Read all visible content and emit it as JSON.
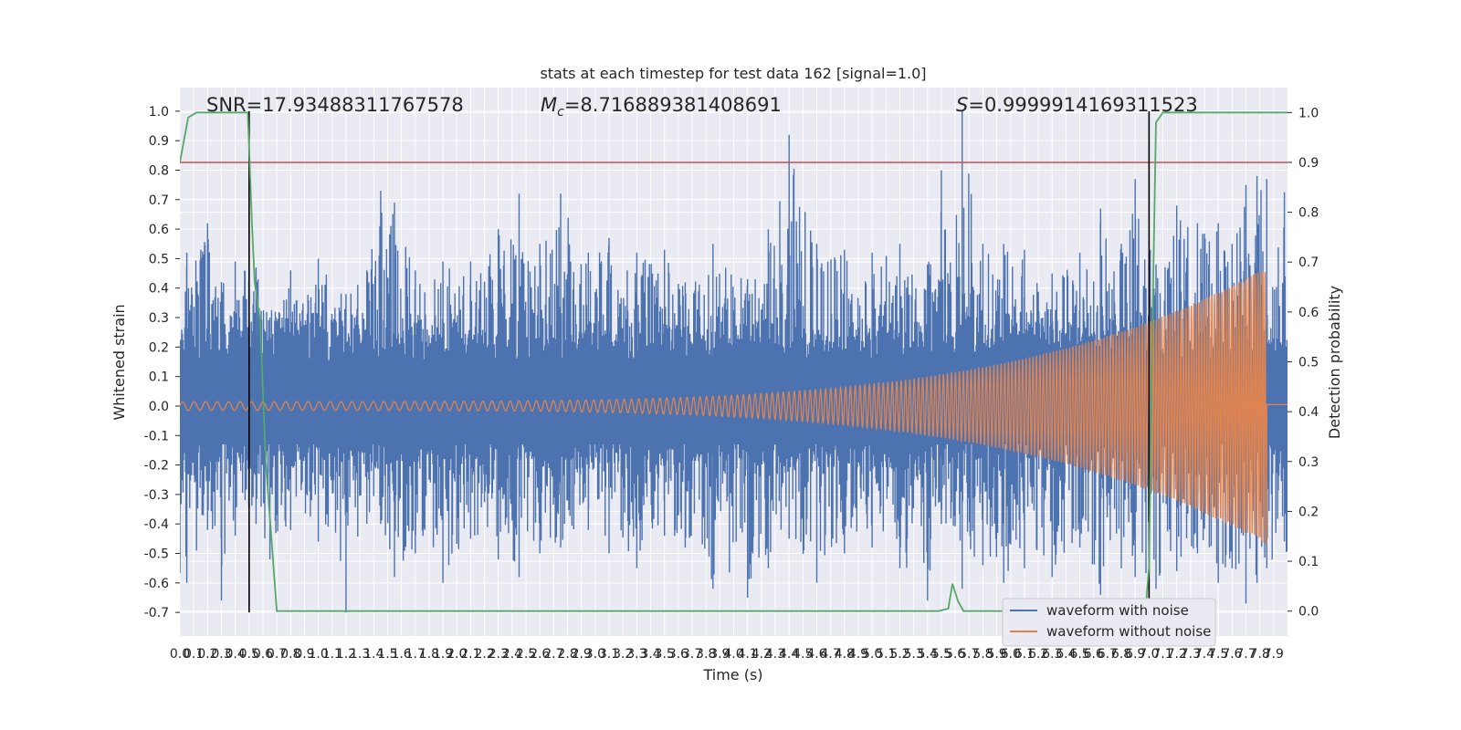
{
  "chart_data": {
    "type": "line",
    "title": "stats at each timestep for test data 162 [signal=1.0]",
    "xlabel": "Time (s)",
    "ylabel": "Whitened strain",
    "y2label": "Detection probability",
    "xlim": [
      0.0,
      8.0
    ],
    "ylim": [
      -0.78,
      1.08
    ],
    "y2lim": [
      -0.05,
      1.05
    ],
    "xticks": [
      0.0,
      0.1,
      0.2,
      0.3,
      0.4,
      0.5,
      0.6,
      0.7,
      0.8,
      0.9,
      1.0,
      1.1,
      1.2,
      1.3,
      1.4,
      1.5,
      1.6,
      1.7,
      1.8,
      1.9,
      2.0,
      2.1,
      2.2,
      2.3,
      2.4,
      2.5,
      2.6,
      2.7,
      2.8,
      2.9,
      3.0,
      3.1,
      3.2,
      3.3,
      3.4,
      3.5,
      3.6,
      3.7,
      3.8,
      3.9,
      4.0,
      4.1,
      4.2,
      4.3,
      4.4,
      4.5,
      4.6,
      4.7,
      4.8,
      4.9,
      5.0,
      5.1,
      5.2,
      5.3,
      5.4,
      5.5,
      5.6,
      5.7,
      5.8,
      5.9,
      6.0,
      6.1,
      6.2,
      6.3,
      6.4,
      6.5,
      6.6,
      6.7,
      6.8,
      6.9,
      7.0,
      7.1,
      7.2,
      7.3,
      7.4,
      7.5,
      7.6,
      7.7,
      7.8,
      7.9
    ],
    "yticks": [
      -0.7,
      -0.6,
      -0.5,
      -0.4,
      -0.3,
      -0.2,
      -0.1,
      0.0,
      0.1,
      0.2,
      0.3,
      0.4,
      0.5,
      0.6,
      0.7,
      0.8,
      0.9,
      1.0
    ],
    "y2ticks": [
      0.0,
      0.1,
      0.2,
      0.3,
      0.4,
      0.5,
      0.6,
      0.7,
      0.8,
      0.9,
      1.0
    ],
    "grid": true,
    "legend_position": "bottom-right",
    "annotations": {
      "snr": "SNR=17.93488311767578",
      "mc_symbol": "M",
      "mc_sub": "c",
      "mc_value": "=8.716889381408691",
      "s_symbol": "S",
      "s_value": "=0.9999914169311523"
    },
    "series": [
      {
        "name": "waveform with noise",
        "color": "#4c72b0",
        "axis": "left",
        "envelope_baseline": [
          0.15,
          -0.12
        ],
        "peak_samples": [
          [
            0.05,
            0.52,
            -0.6
          ],
          [
            0.2,
            0.62,
            -0.42
          ],
          [
            0.3,
            0.42,
            -0.66
          ],
          [
            0.4,
            0.49,
            -0.44
          ],
          [
            0.55,
            0.47,
            -0.4
          ],
          [
            0.65,
            0.3,
            -0.52
          ],
          [
            0.8,
            0.46,
            -0.42
          ],
          [
            1.0,
            0.5,
            -0.46
          ],
          [
            1.2,
            0.38,
            -0.7
          ],
          [
            1.35,
            0.46,
            -0.4
          ],
          [
            1.45,
            0.73,
            -0.4
          ],
          [
            1.55,
            0.69,
            -0.58
          ],
          [
            1.7,
            0.46,
            -0.5
          ],
          [
            1.9,
            0.49,
            -0.6
          ],
          [
            2.1,
            0.49,
            -0.45
          ],
          [
            2.3,
            0.6,
            -0.52
          ],
          [
            2.45,
            0.72,
            -0.58
          ],
          [
            2.6,
            0.55,
            -0.5
          ],
          [
            2.75,
            0.72,
            -0.48
          ],
          [
            2.95,
            0.52,
            -0.42
          ],
          [
            3.1,
            0.57,
            -0.5
          ],
          [
            3.3,
            0.52,
            -0.55
          ],
          [
            3.5,
            0.53,
            -0.44
          ],
          [
            3.65,
            0.42,
            -0.48
          ],
          [
            3.85,
            0.55,
            -0.62
          ],
          [
            4.1,
            0.43,
            -0.65
          ],
          [
            4.25,
            0.6,
            -0.55
          ],
          [
            4.4,
            0.92,
            -0.45
          ],
          [
            4.6,
            0.55,
            -0.6
          ],
          [
            4.8,
            0.53,
            -0.5
          ],
          [
            5.0,
            0.52,
            -0.48
          ],
          [
            5.2,
            0.55,
            -0.55
          ],
          [
            5.4,
            0.48,
            -0.66
          ],
          [
            5.5,
            0.8,
            -0.4
          ],
          [
            5.65,
            1.0,
            -0.62
          ],
          [
            5.8,
            0.55,
            -0.54
          ],
          [
            5.95,
            0.55,
            -0.6
          ],
          [
            6.1,
            0.53,
            -0.55
          ],
          [
            6.3,
            0.45,
            -0.58
          ],
          [
            6.5,
            0.52,
            -0.48
          ],
          [
            6.65,
            0.67,
            -0.64
          ],
          [
            6.8,
            0.55,
            -0.55
          ],
          [
            6.9,
            0.77,
            -0.58
          ],
          [
            7.05,
            0.48,
            -0.62
          ],
          [
            7.2,
            0.68,
            -0.56
          ],
          [
            7.35,
            0.62,
            -0.5
          ],
          [
            7.5,
            0.62,
            -0.6
          ],
          [
            7.6,
            0.55,
            -0.55
          ],
          [
            7.7,
            0.75,
            -0.67
          ],
          [
            7.78,
            0.78,
            -0.6
          ],
          [
            7.85,
            0.77,
            -0.55
          ]
        ]
      },
      {
        "name": "waveform without noise",
        "color": "#dd8452",
        "axis": "left",
        "chirp": {
          "start": 0.0,
          "end": 7.85,
          "amp_start": 0.015,
          "amp_end": 0.47,
          "freq_start": 12,
          "freq_end": 60,
          "after_end_value": 0.005
        }
      },
      {
        "name": "",
        "color": "#55a868",
        "axis": "right",
        "x": [
          0.0,
          0.06,
          0.12,
          0.2,
          0.3,
          0.4,
          0.49,
          0.5,
          0.52,
          0.54,
          0.58,
          0.62,
          0.66,
          0.7,
          0.8,
          1.0,
          2.0,
          3.0,
          4.0,
          5.0,
          5.4,
          5.48,
          5.55,
          5.58,
          5.62,
          5.66,
          5.7,
          5.8,
          6.0,
          6.5,
          6.8,
          6.92,
          6.96,
          6.98,
          7.0,
          7.02,
          7.05,
          7.1,
          7.2,
          7.4,
          7.6,
          7.8,
          8.0
        ],
        "y": [
          0.9,
          0.99,
          1.0,
          1.0,
          1.0,
          1.0,
          1.0,
          0.93,
          0.78,
          0.66,
          0.58,
          0.3,
          0.15,
          0.0,
          0.0,
          0.0,
          0.0,
          0.0,
          0.0,
          0.0,
          0.0,
          0.0,
          0.005,
          0.055,
          0.02,
          0.0,
          0.0,
          0.0,
          0.0,
          0.0,
          0.0,
          0.0,
          0.0,
          0.02,
          0.09,
          0.5,
          0.98,
          1.0,
          1.0,
          1.0,
          1.0,
          1.0,
          1.0
        ]
      }
    ],
    "reference_lines": {
      "horizontal_red": {
        "axis": "right",
        "value": 0.9,
        "color": "#c44e52"
      },
      "vertical_black": [
        0.5,
        7.0
      ]
    }
  }
}
